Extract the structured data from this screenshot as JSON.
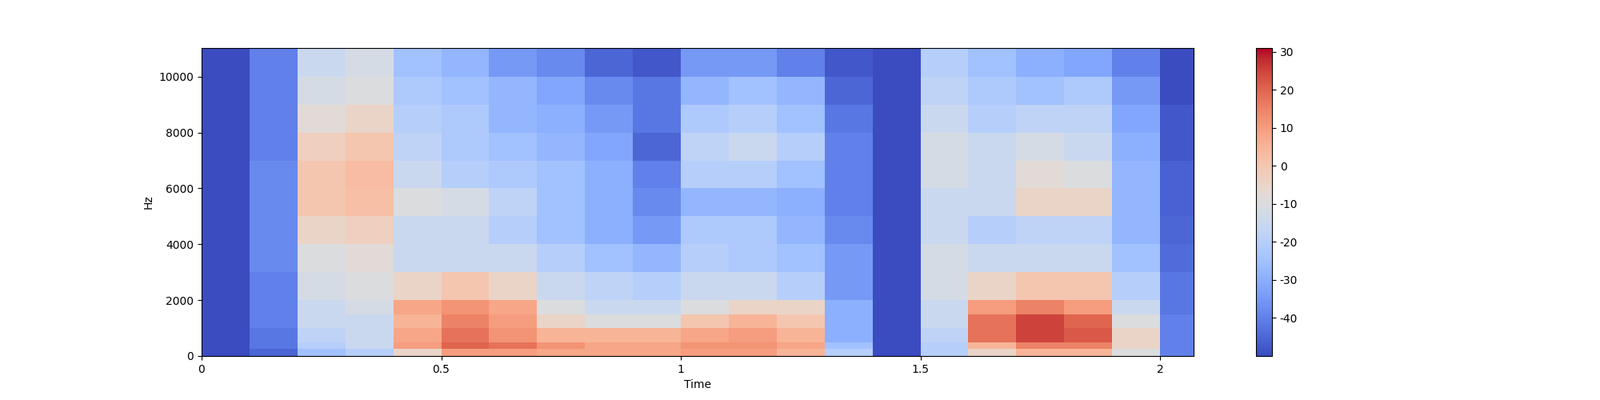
{
  "chart_data": {
    "type": "heatmap",
    "x_label": "Time",
    "y_label": "Hz",
    "color": "coolwarm",
    "xlim": [
      0,
      2.07
    ],
    "xticks": [
      0,
      0.5,
      1,
      1.5,
      2
    ],
    "ylim": [
      0,
      11025
    ],
    "yticks": [
      0,
      2000,
      4000,
      6000,
      8000,
      10000
    ],
    "x_edges": [
      0,
      0.1,
      0.2,
      0.3,
      0.4,
      0.5,
      0.6,
      0.7,
      0.8,
      0.9,
      1.0,
      1.1,
      1.2,
      1.3,
      1.4,
      1.5,
      1.6,
      1.7,
      1.8,
      1.9,
      2.0,
      2.07
    ],
    "y_edges": [
      0,
      250,
      500,
      1000,
      1500,
      2000,
      3000,
      4000,
      5000,
      6000,
      7000,
      8000,
      9000,
      10000,
      11025
    ],
    "cells": [
      [
        -50,
        -45,
        -25,
        -20,
        -5,
        10,
        10,
        8,
        8,
        8,
        10,
        10,
        5,
        -20,
        -50,
        -20,
        -5,
        5,
        5,
        -10,
        -40
      ],
      [
        -50,
        -42,
        -20,
        -15,
        10,
        20,
        18,
        12,
        8,
        8,
        12,
        12,
        8,
        -25,
        -50,
        -20,
        5,
        15,
        15,
        -5,
        -40
      ],
      [
        -50,
        -42,
        -18,
        -15,
        8,
        18,
        12,
        5,
        5,
        5,
        8,
        10,
        5,
        -30,
        -50,
        -18,
        18,
        25,
        22,
        -5,
        -40
      ],
      [
        -50,
        -40,
        -15,
        -15,
        5,
        15,
        10,
        -5,
        -10,
        -10,
        0,
        5,
        0,
        -30,
        -50,
        -15,
        18,
        25,
        20,
        -10,
        -40
      ],
      [
        -50,
        -40,
        -15,
        -12,
        8,
        12,
        8,
        -10,
        -15,
        -15,
        -10,
        -5,
        -5,
        -30,
        -50,
        -15,
        10,
        15,
        10,
        -15,
        -42
      ],
      [
        -50,
        -40,
        -12,
        -10,
        -5,
        0,
        -5,
        -15,
        -18,
        -20,
        -15,
        -15,
        -20,
        -35,
        -50,
        -12,
        -5,
        0,
        0,
        -20,
        -42
      ],
      [
        -50,
        -38,
        -10,
        -8,
        -15,
        -15,
        -15,
        -20,
        -25,
        -28,
        -20,
        -22,
        -25,
        -35,
        -50,
        -12,
        -15,
        -15,
        -15,
        -25,
        -44
      ],
      [
        -50,
        -38,
        -5,
        -3,
        -15,
        -15,
        -20,
        -25,
        -30,
        -35,
        -22,
        -22,
        -28,
        -38,
        -50,
        -15,
        -20,
        -18,
        -18,
        -28,
        -45
      ],
      [
        -50,
        -38,
        0,
        2,
        -10,
        -12,
        -18,
        -25,
        -30,
        -38,
        -28,
        -28,
        -30,
        -40,
        -50,
        -15,
        -15,
        -5,
        -5,
        -28,
        -46
      ],
      [
        -50,
        -38,
        0,
        3,
        -15,
        -20,
        -22,
        -25,
        -30,
        -40,
        -20,
        -20,
        -25,
        -40,
        -50,
        -12,
        -15,
        -8,
        -10,
        -28,
        -46
      ],
      [
        -50,
        -40,
        -3,
        0,
        -18,
        -22,
        -25,
        -28,
        -32,
        -45,
        -18,
        -15,
        -20,
        -40,
        -50,
        -12,
        -15,
        -12,
        -15,
        -30,
        -48
      ],
      [
        -50,
        -40,
        -8,
        -5,
        -20,
        -22,
        -28,
        -30,
        -35,
        -42,
        -22,
        -20,
        -25,
        -42,
        -50,
        -15,
        -20,
        -18,
        -18,
        -32,
        -48
      ],
      [
        -50,
        -40,
        -12,
        -10,
        -22,
        -25,
        -28,
        -32,
        -38,
        -42,
        -28,
        -25,
        -28,
        -45,
        -50,
        -18,
        -22,
        -25,
        -22,
        -35,
        -50
      ],
      [
        -50,
        -40,
        -15,
        -12,
        -25,
        -28,
        -35,
        -38,
        -45,
        -48,
        -35,
        -35,
        -40,
        -48,
        -50,
        -20,
        -25,
        -30,
        -32,
        -40,
        -50
      ]
    ],
    "colorbar_range": [
      -50,
      31
    ],
    "colorbar_ticks": [
      -40,
      -30,
      -20,
      -10,
      0,
      10,
      20,
      30
    ]
  }
}
